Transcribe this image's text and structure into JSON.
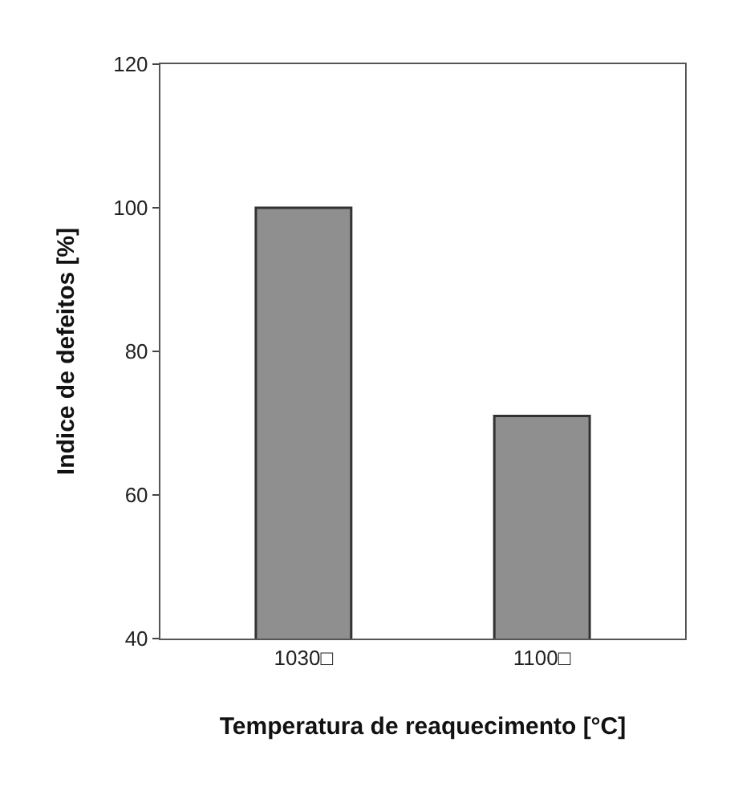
{
  "chart_data": {
    "type": "bar",
    "xlabel": "Temperatura de reaquecimento [°C]",
    "ylabel": "Indice de defeitos [%]",
    "categories": [
      "1030□",
      "1100□"
    ],
    "values": [
      100,
      71
    ],
    "color": "#8f8f8f",
    "ylim": [
      40,
      120
    ],
    "yticks": [
      40,
      60,
      80,
      100,
      120
    ]
  }
}
